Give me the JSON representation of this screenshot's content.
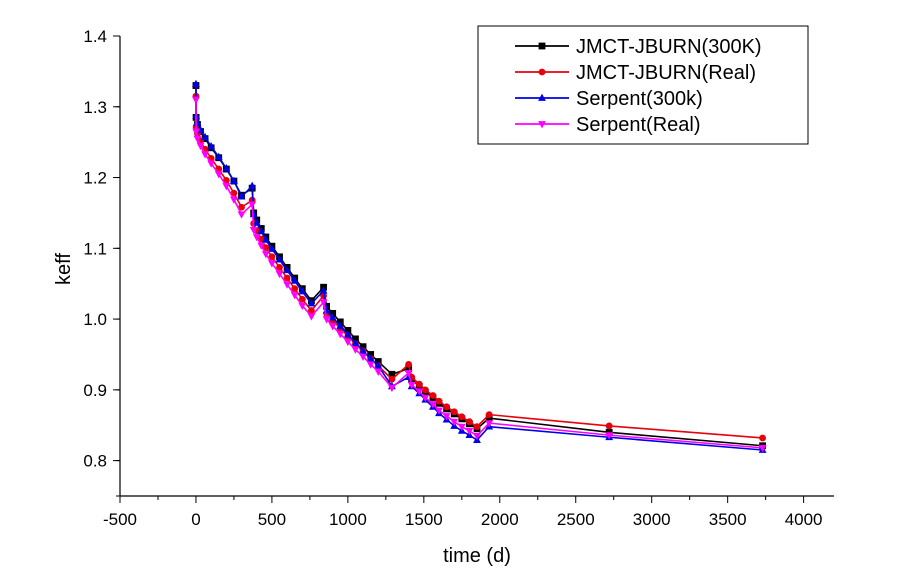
{
  "chart_data": {
    "type": "line",
    "title": "",
    "xlabel": "time (d)",
    "ylabel": "keff",
    "xlim": [
      -500,
      4200
    ],
    "ylim": [
      0.75,
      1.4
    ],
    "xticks": [
      -500,
      0,
      500,
      1000,
      1500,
      2000,
      2500,
      3000,
      3500,
      4000
    ],
    "yticks": [
      0.8,
      0.9,
      1.0,
      1.1,
      1.2,
      1.3,
      1.4
    ],
    "xtick_labels": [
      "-500",
      "0",
      "500",
      "1000",
      "1500",
      "2000",
      "2500",
      "3000",
      "3500",
      "4000"
    ],
    "ytick_labels": [
      "0.8",
      "0.9",
      "1.0",
      "1.1",
      "1.2",
      "1.3",
      "1.4"
    ],
    "grid": false,
    "legend_position": "top-right",
    "series": [
      {
        "name": "JMCT-JBURN(300K)",
        "color": "#000000",
        "marker": "square",
        "x": [
          0,
          1,
          10,
          30,
          60,
          100,
          150,
          200,
          250,
          300,
          370,
          380,
          400,
          430,
          460,
          500,
          550,
          600,
          650,
          700,
          760,
          840,
          860,
          900,
          950,
          1000,
          1050,
          1100,
          1150,
          1200,
          1290,
          1400,
          1420,
          1470,
          1510,
          1560,
          1600,
          1650,
          1700,
          1750,
          1800,
          1850,
          1930,
          2720,
          3730
        ],
        "y": [
          1.33,
          1.285,
          1.275,
          1.265,
          1.255,
          1.242,
          1.228,
          1.212,
          1.195,
          1.175,
          1.185,
          1.15,
          1.14,
          1.128,
          1.116,
          1.103,
          1.088,
          1.073,
          1.058,
          1.043,
          1.026,
          1.045,
          1.018,
          1.008,
          0.996,
          0.984,
          0.972,
          0.961,
          0.95,
          0.94,
          0.922,
          0.93,
          0.915,
          0.905,
          0.897,
          0.889,
          0.881,
          0.873,
          0.866,
          0.859,
          0.852,
          0.845,
          0.86,
          0.84,
          0.821
        ]
      },
      {
        "name": "JMCT-JBURN(Real)",
        "color": "#e8000b",
        "marker": "circle",
        "x": [
          0,
          1,
          10,
          30,
          60,
          100,
          150,
          200,
          250,
          300,
          370,
          380,
          400,
          430,
          460,
          500,
          550,
          600,
          650,
          700,
          760,
          840,
          860,
          900,
          950,
          1000,
          1050,
          1100,
          1150,
          1200,
          1290,
          1400,
          1420,
          1470,
          1510,
          1560,
          1600,
          1650,
          1700,
          1750,
          1800,
          1850,
          1930,
          2720,
          3730
        ],
        "y": [
          1.315,
          1.272,
          1.262,
          1.252,
          1.24,
          1.227,
          1.212,
          1.196,
          1.178,
          1.158,
          1.168,
          1.135,
          1.125,
          1.113,
          1.101,
          1.088,
          1.073,
          1.058,
          1.043,
          1.028,
          1.012,
          1.033,
          1.008,
          0.998,
          0.987,
          0.976,
          0.965,
          0.955,
          0.944,
          0.934,
          0.915,
          0.936,
          0.918,
          0.908,
          0.9,
          0.892,
          0.884,
          0.876,
          0.869,
          0.862,
          0.855,
          0.848,
          0.865,
          0.849,
          0.832
        ]
      },
      {
        "name": "Serpent(300k)",
        "color": "#0000e6",
        "marker": "triangle-up",
        "x": [
          0,
          1,
          10,
          30,
          60,
          100,
          150,
          200,
          250,
          300,
          370,
          380,
          400,
          430,
          460,
          500,
          550,
          600,
          650,
          700,
          760,
          840,
          860,
          900,
          950,
          1000,
          1050,
          1100,
          1150,
          1200,
          1290,
          1400,
          1420,
          1470,
          1510,
          1560,
          1600,
          1650,
          1700,
          1750,
          1800,
          1850,
          1930,
          2720,
          3730
        ],
        "y": [
          1.332,
          1.287,
          1.277,
          1.267,
          1.257,
          1.244,
          1.229,
          1.213,
          1.195,
          1.173,
          1.188,
          1.148,
          1.136,
          1.124,
          1.112,
          1.099,
          1.084,
          1.069,
          1.054,
          1.039,
          1.022,
          1.04,
          1.012,
          1.002,
          0.99,
          0.978,
          0.966,
          0.955,
          0.944,
          0.934,
          0.905,
          0.918,
          0.905,
          0.895,
          0.886,
          0.876,
          0.867,
          0.858,
          0.849,
          0.842,
          0.836,
          0.829,
          0.848,
          0.833,
          0.815
        ]
      },
      {
        "name": "Serpent(Real)",
        "color": "#ff00ff",
        "marker": "triangle-down",
        "x": [
          0,
          1,
          10,
          30,
          60,
          100,
          150,
          200,
          250,
          300,
          370,
          380,
          400,
          430,
          460,
          500,
          550,
          600,
          650,
          700,
          760,
          840,
          860,
          900,
          950,
          1000,
          1050,
          1100,
          1150,
          1200,
          1290,
          1400,
          1420,
          1470,
          1510,
          1560,
          1600,
          1650,
          1700,
          1750,
          1800,
          1850,
          1930,
          2720,
          3730
        ],
        "y": [
          1.31,
          1.265,
          1.255,
          1.245,
          1.233,
          1.22,
          1.205,
          1.188,
          1.169,
          1.148,
          1.162,
          1.126,
          1.116,
          1.104,
          1.092,
          1.079,
          1.064,
          1.049,
          1.034,
          1.019,
          1.004,
          1.024,
          1.0,
          0.99,
          0.979,
          0.968,
          0.957,
          0.947,
          0.936,
          0.926,
          0.903,
          0.924,
          0.907,
          0.898,
          0.889,
          0.88,
          0.871,
          0.863,
          0.855,
          0.848,
          0.842,
          0.835,
          0.853,
          0.836,
          0.818
        ]
      }
    ]
  }
}
